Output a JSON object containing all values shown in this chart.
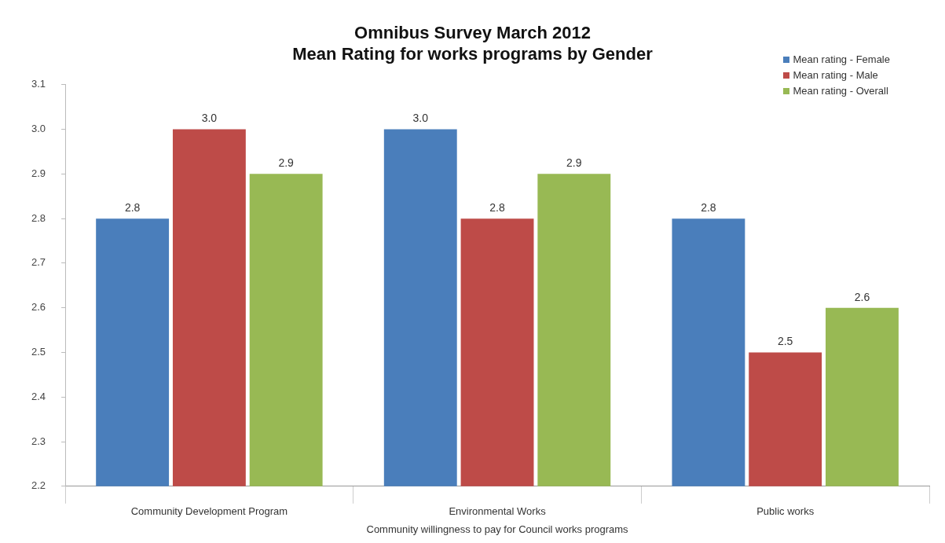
{
  "chart_data": {
    "type": "bar",
    "title": "Omnibus Survey March 2012",
    "subtitle": "Mean Rating for works programs by Gender",
    "xlabel": "Community willingness to pay for Council works programs",
    "categories": [
      "Community Development Program",
      "Environmental Works",
      "Public works"
    ],
    "series": [
      {
        "name": "Mean rating - Female",
        "color": "#4a7ebb",
        "values": [
          2.8,
          3.0,
          2.8
        ],
        "value_labels": [
          "2.8",
          "3.0",
          "2.8"
        ]
      },
      {
        "name": "Mean rating - Male",
        "color": "#be4b48",
        "values": [
          3.0,
          2.8,
          2.5
        ],
        "value_labels": [
          "3.0",
          "2.8",
          "2.5"
        ]
      },
      {
        "name": "Mean rating - Overall",
        "color": "#98b954",
        "values": [
          2.9,
          2.9,
          2.6
        ],
        "value_labels": [
          "2.9",
          "2.9",
          "2.6"
        ]
      }
    ],
    "ylim": [
      2.2,
      3.1
    ],
    "yticks": [
      2.2,
      2.3,
      2.4,
      2.5,
      2.6,
      2.7,
      2.8,
      2.9,
      {
        "value": 3,
        "label": "3.0"
      },
      3.1
    ],
    "legend": "top right"
  }
}
